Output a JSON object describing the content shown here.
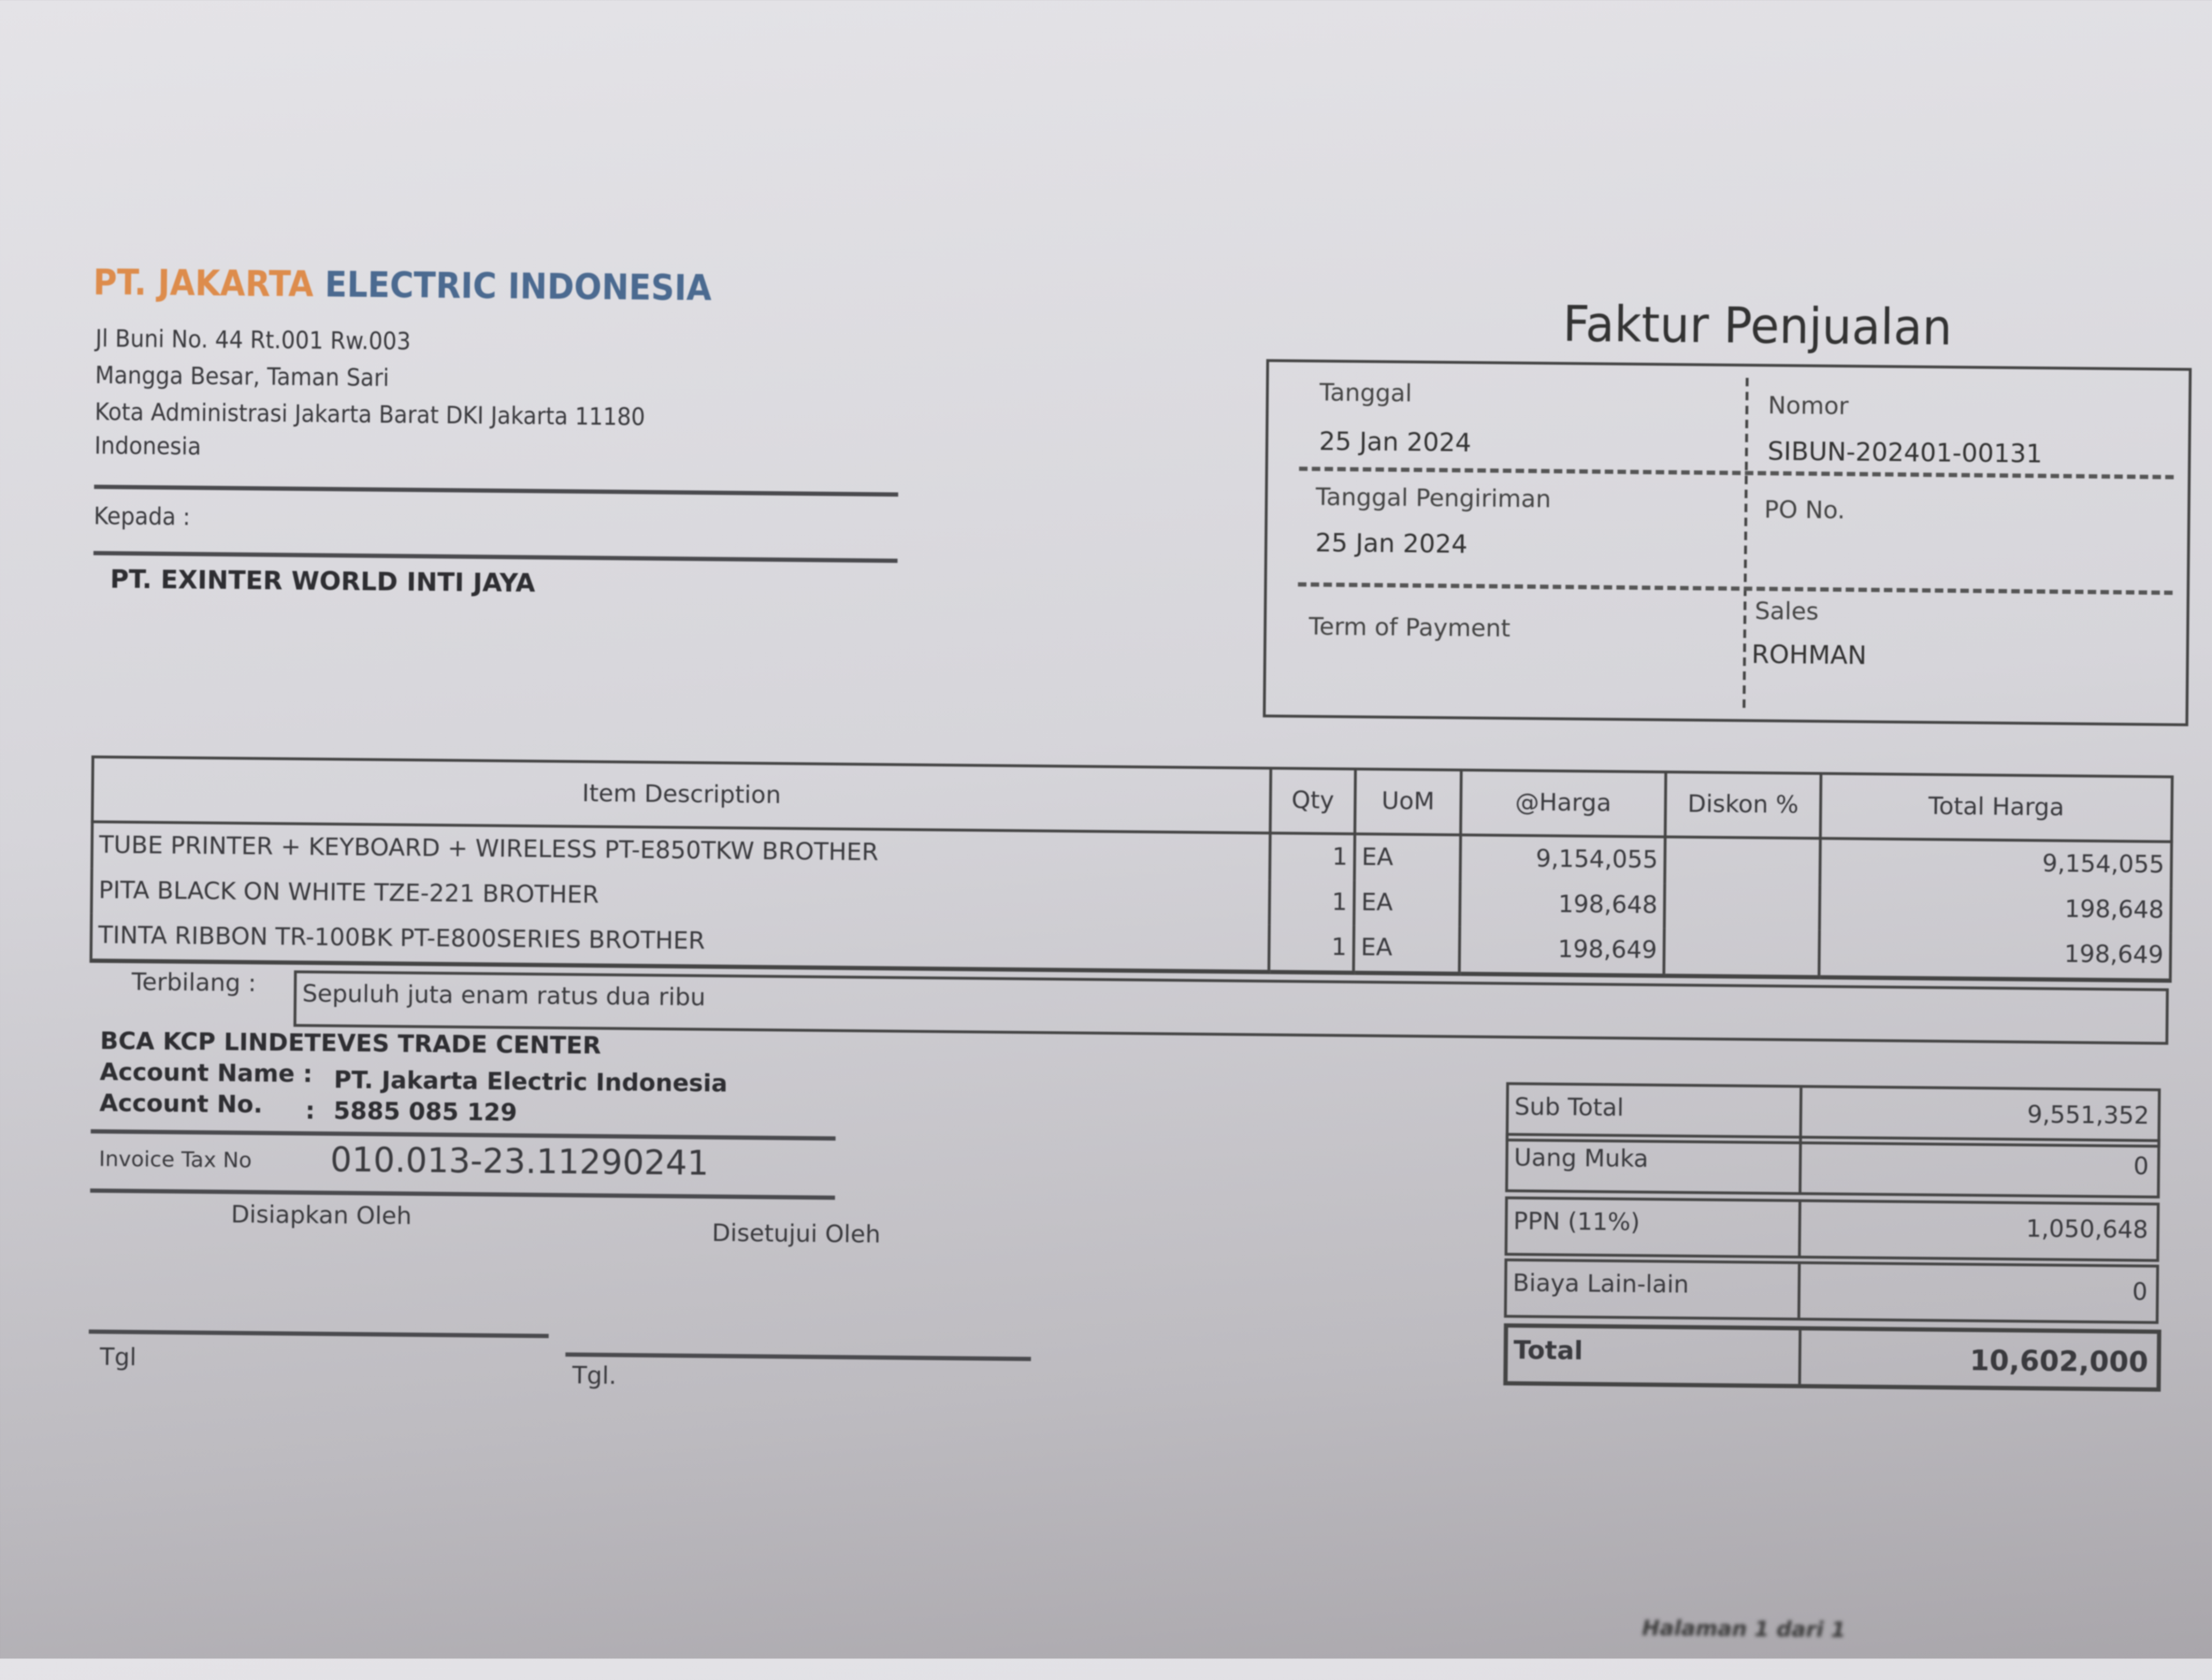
{
  "company": {
    "name_part1": "PT. JAKARTA",
    "name_part2": "ELECTRIC INDONESIA",
    "address": [
      "Jl Buni No. 44 Rt.001 Rw.003",
      "Mangga Besar, Taman Sari",
      "Kota Administrasi Jakarta Barat DKI Jakarta 11180",
      "Indonesia"
    ],
    "colors": {
      "name_part1": "#dd8c4c",
      "name_part2": "#4b6a90"
    }
  },
  "recipient": {
    "label": "Kepada :",
    "name": "PT. EXINTER WORLD INTI JAYA"
  },
  "title": "Faktur Penjualan",
  "info": {
    "tanggal_label": "Tanggal",
    "tanggal": "25 Jan 2024",
    "nomor_label": "Nomor",
    "nomor": "SIBUN-202401-00131",
    "tgl_kirim_label": "Tanggal Pengiriman",
    "tgl_kirim": "25 Jan 2024",
    "po_label": "PO No.",
    "po": "",
    "top_label": "Term of Payment",
    "top": "",
    "sales_label": "Sales",
    "sales": "ROHMAN"
  },
  "items": {
    "headers": [
      "Item Description",
      "Qty",
      "UoM",
      "@Harga",
      "Diskon %",
      "Total Harga"
    ],
    "rows": [
      {
        "desc": "TUBE PRINTER + KEYBOARD + WIRELESS PT-E850TKW BROTHER",
        "qty": "1",
        "uom": "EA",
        "harga": "9,154,055",
        "diskon": "",
        "total": "9,154,055"
      },
      {
        "desc": "PITA BLACK ON WHITE TZE-221 BROTHER",
        "qty": "1",
        "uom": "EA",
        "harga": "198,648",
        "diskon": "",
        "total": "198,648"
      },
      {
        "desc": "TINTA RIBBON TR-100BK PT-E800SERIES BROTHER",
        "qty": "1",
        "uom": "EA",
        "harga": "198,649",
        "diskon": "",
        "total": "198,649"
      }
    ]
  },
  "terbilang": {
    "label": "Terbilang :",
    "value": "Sepuluh juta enam ratus dua ribu"
  },
  "bank": {
    "name": "BCA KCP LINDETEVES TRADE CENTER",
    "account_name_label": "Account Name",
    "account_name": "PT. Jakarta Electric Indonesia",
    "account_no_label": "Account No.",
    "account_no": "5885 085 129"
  },
  "tax": {
    "label": "Invoice Tax No",
    "value": "010.013-23.11290241"
  },
  "signatures": {
    "prepared": "Disiapkan Oleh",
    "approved": "Disetujui Oleh",
    "date_left": "Tgl",
    "date_right": "Tgl."
  },
  "totals": [
    {
      "label": "Sub Total",
      "value": "9,551,352"
    },
    {
      "label": "Uang Muka",
      "value": "0"
    },
    {
      "label": "PPN (11%)",
      "value": "1,050,648"
    },
    {
      "label": "Biaya Lain-lain",
      "value": "0"
    },
    {
      "label": "Total",
      "value": "10,602,000"
    }
  ],
  "footer": "Halaman 1 dari 1"
}
